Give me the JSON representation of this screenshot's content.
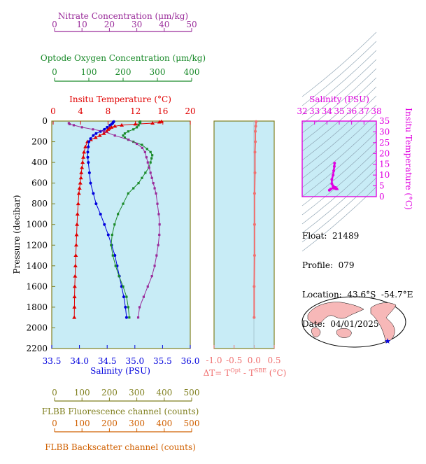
{
  "colors": {
    "nitrate": "#9a2b9a",
    "oxygen": "#1a8a2a",
    "temperature": "#e00000",
    "salinity": "#0000dd",
    "delta": "#f07070",
    "flbb_fluor": "#808020",
    "flbb_back": "#d06000",
    "ts": "#e000e0",
    "plot_bg": "#c8ecf6"
  },
  "axes": {
    "nitrate": {
      "label": "Nitrate Concentration (μm/kg)",
      "ticks": [
        "0",
        "10",
        "20",
        "30",
        "40",
        "50"
      ]
    },
    "oxygen": {
      "label": "Optode Oxygen Concentration (μm/kg)",
      "ticks": [
        "0",
        "100",
        "200",
        "300",
        "400"
      ]
    },
    "temperature": {
      "label": "Insitu Temperature (°C)",
      "ticks": [
        "0",
        "4",
        "8",
        "12",
        "16",
        "20"
      ]
    },
    "pressure": {
      "label": "Pressure (decibar)",
      "ticks": [
        "0",
        "200",
        "400",
        "600",
        "800",
        "1000",
        "1200",
        "1400",
        "1600",
        "1800",
        "2000",
        "2200"
      ]
    },
    "salinity": {
      "label": "Salinity (PSU)",
      "ticks": [
        "33.5",
        "34.0",
        "34.5",
        "35.0",
        "35.5",
        "36.0"
      ]
    },
    "delta": {
      "label": "ΔT= T",
      "sup1": "Opt",
      "mid": " - T",
      "sup2": "SBE",
      "unit": " (°C)",
      "ticks": [
        "-1.0",
        "-0.5",
        "0.0",
        "0.5"
      ]
    },
    "flbb_fluor": {
      "label": "FLBB Fluorescence channel (counts)",
      "ticks": [
        "0",
        "100",
        "200",
        "300",
        "400",
        "500"
      ]
    },
    "flbb_back": {
      "label": "FLBB Backscatter channel (counts)",
      "ticks": [
        "0",
        "100",
        "200",
        "300",
        "400",
        "500"
      ]
    },
    "ts_salinity": {
      "label": "Salinity (PSU)",
      "ticks": [
        "32",
        "33",
        "34",
        "35",
        "36",
        "37",
        "38"
      ]
    },
    "ts_temperature": {
      "label": "Insitu Temperature (°C)",
      "ticks": [
        "0",
        "5",
        "10",
        "15",
        "20",
        "25",
        "30",
        "35"
      ]
    }
  },
  "info": {
    "float": "Float:  21489",
    "profile": "Profile:  079",
    "location": "Location:  43.6°S  -54.7°E",
    "date": "Date:  04/01/2025"
  },
  "chart_data": [
    {
      "type": "line",
      "title": "",
      "ylabel": "Pressure (decibar)",
      "ylim": [
        0,
        2200
      ],
      "y_inverted": true,
      "grid": false,
      "series": [
        {
          "name": "Insitu Temperature (°C)",
          "xlim": [
            0,
            20
          ],
          "points": [
            [
              15.8,
              5
            ],
            [
              15.5,
              10
            ],
            [
              14.5,
              20
            ],
            [
              12,
              30
            ],
            [
              10,
              40
            ],
            [
              9,
              50
            ],
            [
              8.5,
              60
            ],
            [
              8.2,
              70
            ],
            [
              8,
              80
            ],
            [
              7.8,
              100
            ],
            [
              7.4,
              120
            ],
            [
              6.8,
              140
            ],
            [
              6.2,
              160
            ],
            [
              5.5,
              180
            ],
            [
              5,
              200
            ],
            [
              4.7,
              250
            ],
            [
              4.5,
              300
            ],
            [
              4.4,
              350
            ],
            [
              4.3,
              400
            ],
            [
              4.2,
              450
            ],
            [
              4.1,
              500
            ],
            [
              4.05,
              550
            ],
            [
              3.95,
              600
            ],
            [
              3.85,
              650
            ],
            [
              3.75,
              700
            ],
            [
              3.65,
              800
            ],
            [
              3.55,
              900
            ],
            [
              3.48,
              1000
            ],
            [
              3.42,
              1100
            ],
            [
              3.36,
              1200
            ],
            [
              3.3,
              1300
            ],
            [
              3.25,
              1400
            ],
            [
              3.2,
              1500
            ],
            [
              3.15,
              1600
            ],
            [
              3.12,
              1700
            ],
            [
              3.1,
              1800
            ],
            [
              3.08,
              1900
            ]
          ]
        },
        {
          "name": "Salinity (PSU)",
          "xlim": [
            33.5,
            36.0
          ],
          "points": [
            [
              34.62,
              5
            ],
            [
              34.61,
              10
            ],
            [
              34.6,
              20
            ],
            [
              34.58,
              30
            ],
            [
              34.55,
              40
            ],
            [
              34.5,
              60
            ],
            [
              34.45,
              80
            ],
            [
              34.38,
              100
            ],
            [
              34.3,
              120
            ],
            [
              34.25,
              140
            ],
            [
              34.2,
              170
            ],
            [
              34.17,
              200
            ],
            [
              34.16,
              250
            ],
            [
              34.15,
              300
            ],
            [
              34.15,
              350
            ],
            [
              34.16,
              400
            ],
            [
              34.18,
              500
            ],
            [
              34.2,
              600
            ],
            [
              34.25,
              700
            ],
            [
              34.3,
              800
            ],
            [
              34.38,
              900
            ],
            [
              34.45,
              1000
            ],
            [
              34.52,
              1100
            ],
            [
              34.58,
              1200
            ],
            [
              34.64,
              1300
            ],
            [
              34.68,
              1400
            ],
            [
              34.72,
              1500
            ],
            [
              34.76,
              1600
            ],
            [
              34.8,
              1700
            ],
            [
              34.83,
              1800
            ],
            [
              34.85,
              1900
            ]
          ]
        },
        {
          "name": "Optode Oxygen Concentration (μm/kg)",
          "xlim": [
            0,
            400
          ],
          "points": [
            [
              250,
              5
            ],
            [
              248,
              10
            ],
            [
              250,
              20
            ],
            [
              245,
              40
            ],
            [
              240,
              60
            ],
            [
              230,
              80
            ],
            [
              215,
              100
            ],
            [
              205,
              120
            ],
            [
              200,
              140
            ],
            [
              205,
              160
            ],
            [
              215,
              180
            ],
            [
              230,
              200
            ],
            [
              255,
              230
            ],
            [
              270,
              270
            ],
            [
              280,
              300
            ],
            [
              285,
              330
            ],
            [
              283,
              360
            ],
            [
              280,
              400
            ],
            [
              275,
              450
            ],
            [
              265,
              500
            ],
            [
              255,
              550
            ],
            [
              245,
              600
            ],
            [
              230,
              650
            ],
            [
              215,
              700
            ],
            [
              200,
              800
            ],
            [
              185,
              900
            ],
            [
              175,
              1000
            ],
            [
              168,
              1100
            ],
            [
              165,
              1200
            ],
            [
              170,
              1300
            ],
            [
              178,
              1400
            ],
            [
              188,
              1500
            ],
            [
              200,
              1600
            ],
            [
              210,
              1700
            ],
            [
              215,
              1800
            ],
            [
              218,
              1900
            ]
          ]
        },
        {
          "name": "Nitrate Concentration (μm/kg)",
          "xlim": [
            0,
            50
          ],
          "points": [
            [
              5.2,
              20
            ],
            [
              5.5,
              30
            ],
            [
              7,
              40
            ],
            [
              10,
              60
            ],
            [
              14,
              80
            ],
            [
              18,
              100
            ],
            [
              22,
              140
            ],
            [
              27,
              180
            ],
            [
              30,
              220
            ],
            [
              32,
              260
            ],
            [
              33,
              300
            ],
            [
              33.5,
              350
            ],
            [
              34,
              400
            ],
            [
              34.5,
              450
            ],
            [
              35,
              500
            ],
            [
              35.5,
              550
            ],
            [
              36,
              600
            ],
            [
              36.5,
              650
            ],
            [
              37,
              700
            ],
            [
              37.5,
              800
            ],
            [
              38,
              900
            ],
            [
              38.3,
              1000
            ],
            [
              38.2,
              1100
            ],
            [
              37.8,
              1200
            ],
            [
              37.2,
              1300
            ],
            [
              36.5,
              1400
            ],
            [
              35.5,
              1500
            ],
            [
              34,
              1600
            ],
            [
              32.5,
              1700
            ],
            [
              31,
              1800
            ],
            [
              30.5,
              1900
            ]
          ]
        },
        {
          "name": "ΔT",
          "xlim": [
            -1.0,
            0.5
          ],
          "points": [
            [
              0.05,
              5
            ],
            [
              0.04,
              50
            ],
            [
              0.03,
              100
            ],
            [
              0.03,
              200
            ],
            [
              0.02,
              300
            ],
            [
              0.02,
              500
            ],
            [
              0.01,
              700
            ],
            [
              0.01,
              1000
            ],
            [
              0.01,
              1300
            ],
            [
              0.0,
              1600
            ],
            [
              0.0,
              1900
            ]
          ]
        }
      ]
    },
    {
      "type": "scatter",
      "title": "",
      "xlabel": "Salinity (PSU)",
      "ylabel": "Insitu Temperature (°C)",
      "xlim": [
        32,
        38
      ],
      "ylim": [
        0,
        35
      ],
      "points": [
        [
          34.2,
          3
        ],
        [
          34.3,
          3.5
        ],
        [
          34.5,
          4
        ],
        [
          34.7,
          3.7
        ],
        [
          34.8,
          3.6
        ],
        [
          34.7,
          4.2
        ],
        [
          34.5,
          5
        ],
        [
          34.4,
          6
        ],
        [
          34.4,
          8
        ],
        [
          34.5,
          10
        ],
        [
          34.55,
          12
        ],
        [
          34.6,
          14
        ],
        [
          34.62,
          15.5
        ]
      ]
    }
  ]
}
